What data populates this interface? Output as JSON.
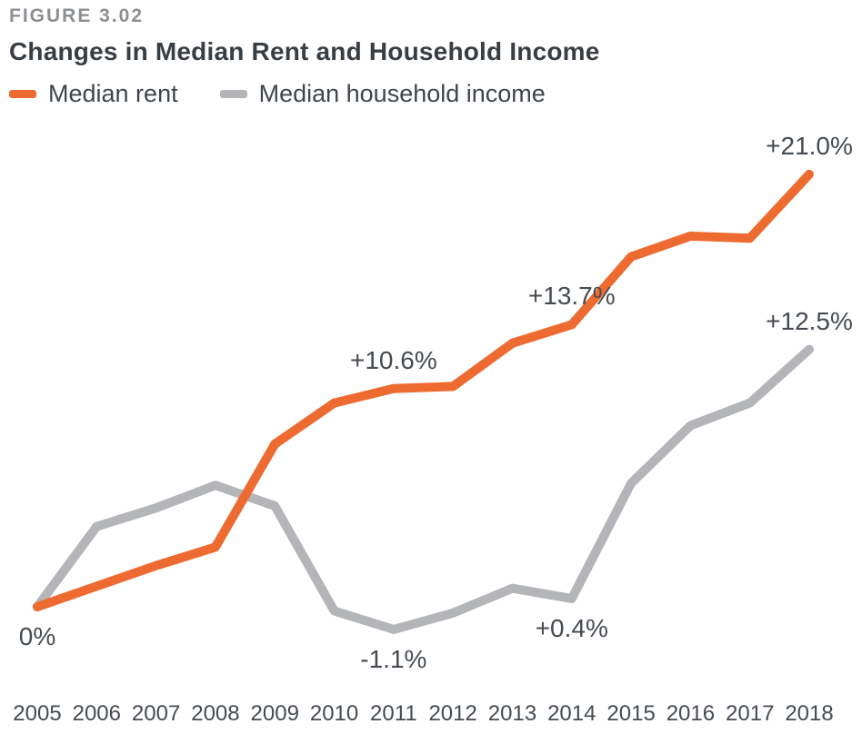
{
  "figure_label": "FIGURE 3.02",
  "title": "Changes in Median Rent and Household Income",
  "colors": {
    "rent_orange": "#ED6B30",
    "income_gray": "#B4B5B8",
    "title_text": "#383E44",
    "figure_label_text": "#8C8F92",
    "annotation_text": "#454B52",
    "background": "#FFFFFF"
  },
  "chart_data": {
    "type": "line",
    "categories": [
      "2005",
      "2006",
      "2007",
      "2008",
      "2009",
      "2010",
      "2011",
      "2012",
      "2013",
      "2014",
      "2015",
      "2016",
      "2017",
      "2018"
    ],
    "series": [
      {
        "key": "rent",
        "name": "Median rent",
        "color": "#ED6B30",
        "values": [
          0,
          1.0,
          2.0,
          2.9,
          7.9,
          9.9,
          10.6,
          10.7,
          12.8,
          13.7,
          17.0,
          18.0,
          17.9,
          21.0
        ]
      },
      {
        "key": "income",
        "name": "Median household income",
        "color": "#B4B5B8",
        "values": [
          0,
          3.9,
          4.8,
          5.9,
          4.9,
          -0.2,
          -1.1,
          -0.3,
          0.9,
          0.4,
          6.0,
          8.8,
          9.9,
          12.5
        ]
      }
    ],
    "annotations": [
      {
        "text": "0%",
        "year": "2005",
        "series": "rent",
        "placement": "below"
      },
      {
        "text": "+10.6%",
        "year": "2011",
        "series": "rent",
        "placement": "above"
      },
      {
        "text": "+13.7%",
        "year": "2014",
        "series": "rent",
        "placement": "above"
      },
      {
        "text": "+21.0%",
        "year": "2018",
        "series": "rent",
        "placement": "above"
      },
      {
        "text": "-1.1%",
        "year": "2011",
        "series": "income",
        "placement": "below"
      },
      {
        "text": "+0.4%",
        "year": "2014",
        "series": "income",
        "placement": "below"
      },
      {
        "text": "+12.5%",
        "year": "2018",
        "series": "income",
        "placement": "above"
      }
    ],
    "title": "Changes in Median Rent and Household Income",
    "xlabel": "",
    "ylabel": "",
    "unit": "%",
    "ylim": [
      -3,
      23
    ],
    "grid": false,
    "legend_position": "top-left"
  }
}
